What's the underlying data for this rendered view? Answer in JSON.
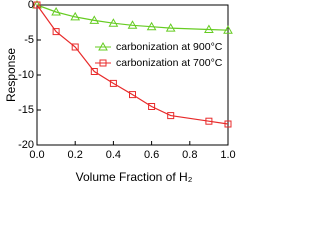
{
  "chart_data": {
    "type": "line",
    "x_label": "Volume Fraction of H₂",
    "y_label": "Response",
    "x": [
      0,
      0.1,
      0.2,
      0.3,
      0.4,
      0.5,
      0.6,
      0.7,
      0.9,
      1.0
    ],
    "series": [
      {
        "name": "carbonization at 900°C",
        "color": "#66cc22",
        "marker": "triangle",
        "values": [
          0,
          -1.0,
          -1.7,
          -2.2,
          -2.6,
          -2.9,
          -3.1,
          -3.3,
          -3.5,
          -3.6
        ]
      },
      {
        "name": "carbonization at 700°C",
        "color": "#e82a2a",
        "marker": "square",
        "values": [
          0,
          -3.8,
          -6.0,
          -9.5,
          -11.2,
          -12.8,
          -14.5,
          -15.8,
          -16.6,
          -17.0
        ]
      }
    ],
    "xlim": [
      0,
      1.0
    ],
    "xticks": [
      {
        "value": 0,
        "label": "0.0"
      },
      0.2,
      0.4,
      0.6,
      0.8,
      {
        "value": 1.0,
        "label": "1.0"
      }
    ],
    "ylim": [
      -20,
      0
    ],
    "yticks": [
      -20,
      -15,
      -10,
      -5,
      0
    ],
    "legend": "upper-right"
  }
}
